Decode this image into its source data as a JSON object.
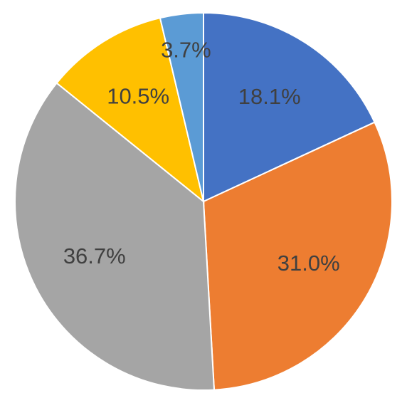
{
  "chart_data": {
    "type": "pie",
    "values": [
      18.1,
      31.0,
      36.7,
      10.5,
      3.7
    ],
    "value_labels": [
      "18.1%",
      "31.0%",
      "36.7%",
      "10.5%",
      "3.7%"
    ],
    "colors": [
      "#4472c4",
      "#ed7d31",
      "#a5a5a5",
      "#ffc000",
      "#5b9bd5"
    ]
  }
}
